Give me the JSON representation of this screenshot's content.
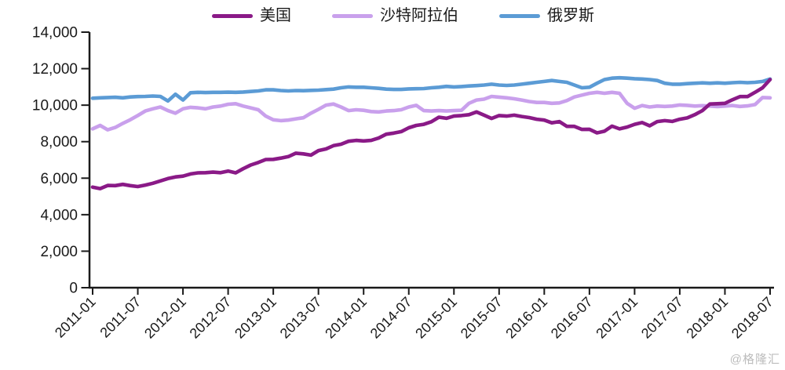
{
  "watermark": "@格隆汇",
  "chart_data": {
    "type": "line",
    "title": "",
    "xlabel": "",
    "ylabel": "",
    "x_start": "2011-01",
    "x_end": "2018-07",
    "x_interval": "monthly",
    "x_tick_labels": [
      "2011-01",
      "2011-07",
      "2012-01",
      "2012-07",
      "2013-01",
      "2013-07",
      "2014-01",
      "2014-07",
      "2015-01",
      "2015-07",
      "2016-01",
      "2016-07",
      "2017-01",
      "2017-07",
      "2018-01",
      "2018-07"
    ],
    "y_tick_labels": [
      "0",
      "2,000",
      "4,000",
      "6,000",
      "8,000",
      "10,000",
      "12,000",
      "14,000"
    ],
    "ylim": [
      0,
      14000
    ],
    "grid": false,
    "legend_position": "top",
    "axis_color": "#1a1a1a",
    "series": [
      {
        "name": "美国",
        "color": "#8A1A87",
        "values": [
          5510,
          5430,
          5600,
          5590,
          5660,
          5590,
          5540,
          5620,
          5720,
          5850,
          5980,
          6070,
          6110,
          6230,
          6290,
          6300,
          6330,
          6300,
          6390,
          6290,
          6520,
          6720,
          6860,
          7020,
          7030,
          7100,
          7180,
          7370,
          7330,
          7260,
          7510,
          7600,
          7780,
          7860,
          8020,
          8070,
          8040,
          8070,
          8200,
          8410,
          8470,
          8550,
          8760,
          8890,
          8950,
          9090,
          9340,
          9280,
          9400,
          9430,
          9480,
          9630,
          9450,
          9270,
          9430,
          9400,
          9450,
          9380,
          9320,
          9230,
          9180,
          9030,
          9100,
          8840,
          8840,
          8670,
          8680,
          8480,
          8570,
          8850,
          8700,
          8800,
          8950,
          9050,
          8870,
          9100,
          9150,
          9110,
          9230,
          9300,
          9480,
          9700,
          10060,
          10080,
          10100,
          10300,
          10470,
          10470,
          10700,
          10950,
          11400
        ]
      },
      {
        "name": "沙特阿拉伯",
        "color": "#C9A0EC",
        "values": [
          8700,
          8890,
          8650,
          8780,
          9000,
          9200,
          9430,
          9680,
          9800,
          9900,
          9700,
          9560,
          9800,
          9880,
          9850,
          9800,
          9900,
          9950,
          10050,
          10080,
          9950,
          9850,
          9750,
          9400,
          9200,
          9150,
          9180,
          9250,
          9310,
          9560,
          9770,
          10000,
          10060,
          9900,
          9700,
          9750,
          9720,
          9650,
          9630,
          9680,
          9700,
          9750,
          9900,
          9990,
          9700,
          9680,
          9700,
          9680,
          9700,
          9720,
          10100,
          10280,
          10330,
          10480,
          10440,
          10400,
          10350,
          10280,
          10200,
          10150,
          10150,
          10100,
          10120,
          10250,
          10450,
          10550,
          10650,
          10700,
          10650,
          10700,
          10650,
          10100,
          9830,
          9980,
          9900,
          9950,
          9930,
          9950,
          10010,
          9990,
          9950,
          9970,
          9950,
          9920,
          9950,
          9980,
          9930,
          9960,
          10030,
          10420,
          10400
        ]
      },
      {
        "name": "俄罗斯",
        "color": "#5B9BD5",
        "values": [
          10380,
          10400,
          10420,
          10430,
          10400,
          10450,
          10470,
          10480,
          10500,
          10480,
          10230,
          10600,
          10280,
          10680,
          10700,
          10690,
          10700,
          10700,
          10710,
          10700,
          10720,
          10750,
          10780,
          10840,
          10840,
          10800,
          10780,
          10800,
          10790,
          10810,
          10820,
          10850,
          10880,
          10950,
          11000,
          10980,
          10980,
          10950,
          10920,
          10880,
          10860,
          10860,
          10890,
          10900,
          10910,
          10950,
          10980,
          11030,
          11000,
          11020,
          11050,
          11070,
          11100,
          11150,
          11100,
          11080,
          11100,
          11150,
          11200,
          11250,
          11300,
          11350,
          11300,
          11250,
          11100,
          10950,
          10980,
          11200,
          11400,
          11480,
          11500,
          11480,
          11450,
          11430,
          11400,
          11350,
          11200,
          11150,
          11150,
          11180,
          11200,
          11220,
          11200,
          11220,
          11200,
          11230,
          11250,
          11230,
          11250,
          11300,
          11430
        ]
      }
    ]
  }
}
